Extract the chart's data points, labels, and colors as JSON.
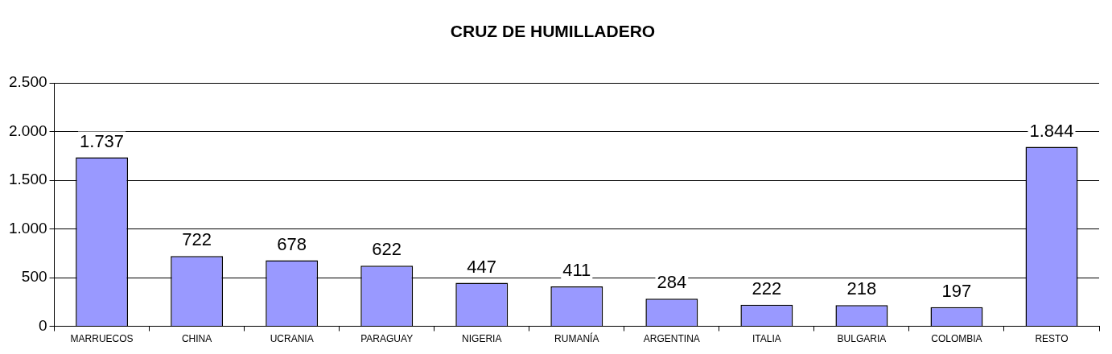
{
  "chart_data": {
    "type": "bar",
    "title": "CRUZ DE HUMILLADERO",
    "categories": [
      "MARRUECOS",
      "CHINA",
      "UCRANIA",
      "PARAGUAY",
      "NIGERIA",
      "RUMANÍA",
      "ARGENTINA",
      "ITALIA",
      "BULGARIA",
      "COLOMBIA",
      "RESTO"
    ],
    "values": [
      1737,
      722,
      678,
      622,
      447,
      411,
      284,
      222,
      218,
      197,
      1844
    ],
    "value_labels": [
      "1.737",
      "722",
      "678",
      "622",
      "447",
      "411",
      "284",
      "222",
      "218",
      "197",
      "1.844"
    ],
    "color": "#9999ff",
    "ylim": [
      0,
      2500
    ],
    "yticks": [
      {
        "value": 0,
        "label": "0"
      },
      {
        "value": 500,
        "label": "500"
      },
      {
        "value": 1000,
        "label": "1.000"
      },
      {
        "value": 1500,
        "label": "1.500"
      },
      {
        "value": 2000,
        "label": "2.000"
      },
      {
        "value": 2500,
        "label": "2.500"
      }
    ],
    "grid": "y",
    "legend": false
  }
}
